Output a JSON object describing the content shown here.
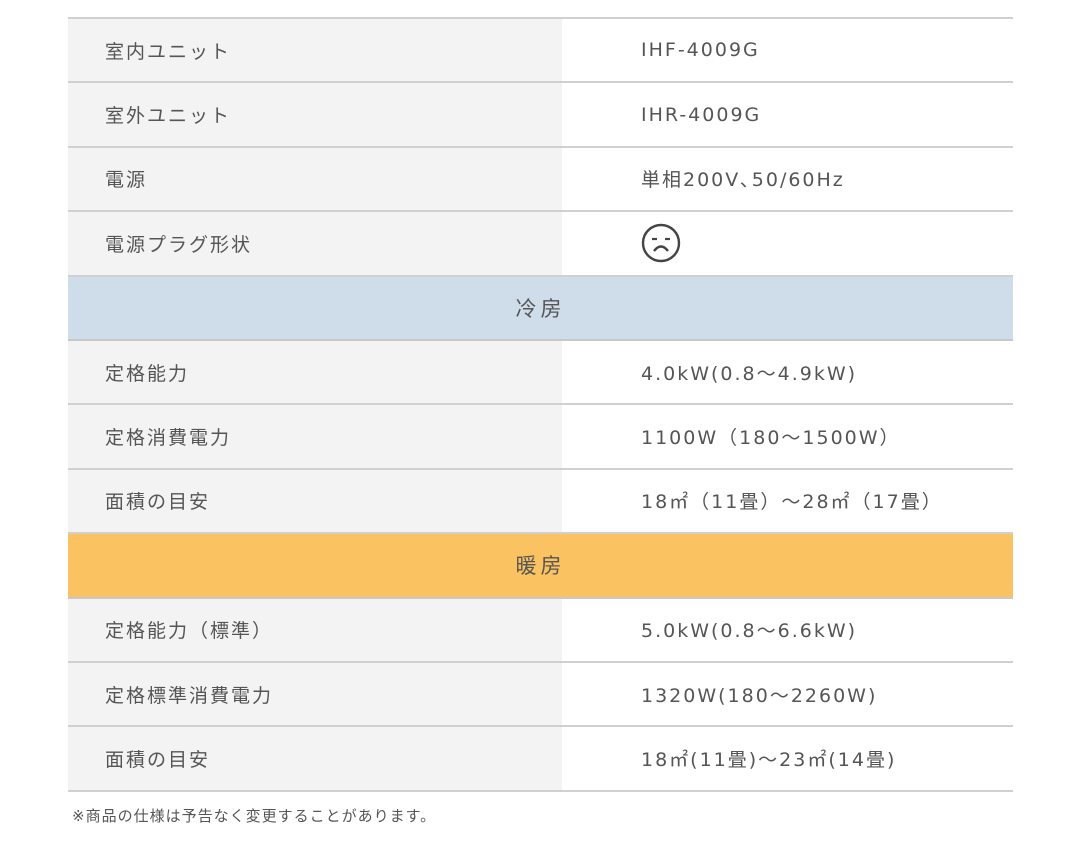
{
  "sections": [
    {
      "type": "rows",
      "rows": [
        {
          "label": "室内ユニット",
          "value": "IHF-4009G"
        },
        {
          "label": "室外ユニット",
          "value": "IHR-4009G"
        },
        {
          "label": "電源",
          "value": "単相200V､50/60Hz"
        },
        {
          "label": "電源プラグ形状",
          "icon": "frowning-face-icon"
        }
      ]
    },
    {
      "type": "header",
      "title": "冷房",
      "color": "#cfdcea"
    },
    {
      "type": "rows",
      "rows": [
        {
          "label": "定格能力",
          "value": "4.0kW(0.8～4.9kW)"
        },
        {
          "label": "定格消費電力",
          "value": "1100W（180～1500W）"
        },
        {
          "label": "面積の目安",
          "value": "18㎡（11畳）～28㎡（17畳）"
        }
      ]
    },
    {
      "type": "header",
      "title": "暖房",
      "color": "#fbc262"
    },
    {
      "type": "rows",
      "rows": [
        {
          "label": "定格能力（標準）",
          "value": "5.0kW(0.8～6.6kW)"
        },
        {
          "label": "定格標準消費電力",
          "value": "1320W(180～2260W)"
        },
        {
          "label": "面積の目安",
          "value": "18㎡(11畳)～23㎡(14畳)"
        }
      ]
    }
  ],
  "footnote": "※商品の仕様は予告なく変更することがあります。"
}
